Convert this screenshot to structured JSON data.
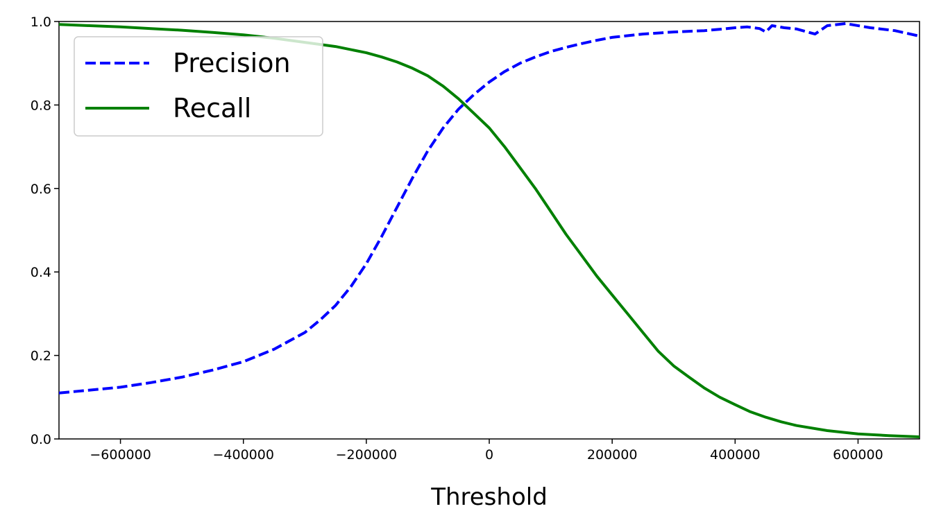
{
  "chart_data": {
    "type": "line",
    "title": "",
    "xlabel": "Threshold",
    "ylabel": "",
    "xlim": [
      -700000,
      700000
    ],
    "ylim": [
      0.0,
      1.0
    ],
    "grid": false,
    "legend_position": "upper-left",
    "x_ticks": [
      -600000,
      -400000,
      -200000,
      0,
      200000,
      400000,
      600000
    ],
    "x_tick_labels": [
      "−600000",
      "−400000",
      "−200000",
      "0",
      "200000",
      "400000",
      "600000"
    ],
    "y_ticks": [
      0.0,
      0.2,
      0.4,
      0.6,
      0.8,
      1.0
    ],
    "y_tick_labels": [
      "0.0",
      "0.2",
      "0.4",
      "0.6",
      "0.8",
      "1.0"
    ],
    "series": [
      {
        "name": "Precision",
        "color": "#0000ff",
        "style": "dashed",
        "x": [
          -700000,
          -650000,
          -600000,
          -550000,
          -500000,
          -450000,
          -400000,
          -350000,
          -300000,
          -275000,
          -250000,
          -225000,
          -200000,
          -175000,
          -150000,
          -125000,
          -100000,
          -75000,
          -50000,
          -25000,
          0,
          25000,
          50000,
          75000,
          100000,
          125000,
          150000,
          175000,
          200000,
          250000,
          300000,
          350000,
          380000,
          400000,
          420000,
          440000,
          450000,
          460000,
          480000,
          500000,
          530000,
          550000,
          580000,
          620000,
          660000,
          700000
        ],
        "y": [
          0.11,
          0.117,
          0.124,
          0.135,
          0.148,
          0.165,
          0.185,
          0.215,
          0.255,
          0.285,
          0.32,
          0.365,
          0.42,
          0.485,
          0.555,
          0.625,
          0.69,
          0.745,
          0.79,
          0.825,
          0.855,
          0.88,
          0.9,
          0.915,
          0.928,
          0.938,
          0.947,
          0.955,
          0.962,
          0.97,
          0.975,
          0.978,
          0.982,
          0.985,
          0.987,
          0.983,
          0.975,
          0.99,
          0.985,
          0.982,
          0.97,
          0.99,
          0.995,
          0.985,
          0.978,
          0.965
        ]
      },
      {
        "name": "Recall",
        "color": "#008000",
        "style": "solid",
        "x": [
          -700000,
          -650000,
          -600000,
          -550000,
          -500000,
          -450000,
          -400000,
          -350000,
          -300000,
          -250000,
          -200000,
          -175000,
          -150000,
          -125000,
          -100000,
          -75000,
          -50000,
          -25000,
          0,
          25000,
          50000,
          75000,
          100000,
          125000,
          150000,
          175000,
          200000,
          225000,
          250000,
          275000,
          300000,
          325000,
          350000,
          375000,
          400000,
          425000,
          450000,
          475000,
          500000,
          550000,
          600000,
          650000,
          700000
        ],
        "y": [
          0.993,
          0.99,
          0.987,
          0.983,
          0.979,
          0.974,
          0.968,
          0.96,
          0.95,
          0.94,
          0.925,
          0.915,
          0.903,
          0.888,
          0.87,
          0.845,
          0.815,
          0.78,
          0.745,
          0.7,
          0.65,
          0.6,
          0.545,
          0.49,
          0.44,
          0.39,
          0.345,
          0.3,
          0.255,
          0.21,
          0.175,
          0.148,
          0.122,
          0.1,
          0.082,
          0.065,
          0.052,
          0.041,
          0.032,
          0.02,
          0.012,
          0.008,
          0.005
        ]
      }
    ]
  }
}
